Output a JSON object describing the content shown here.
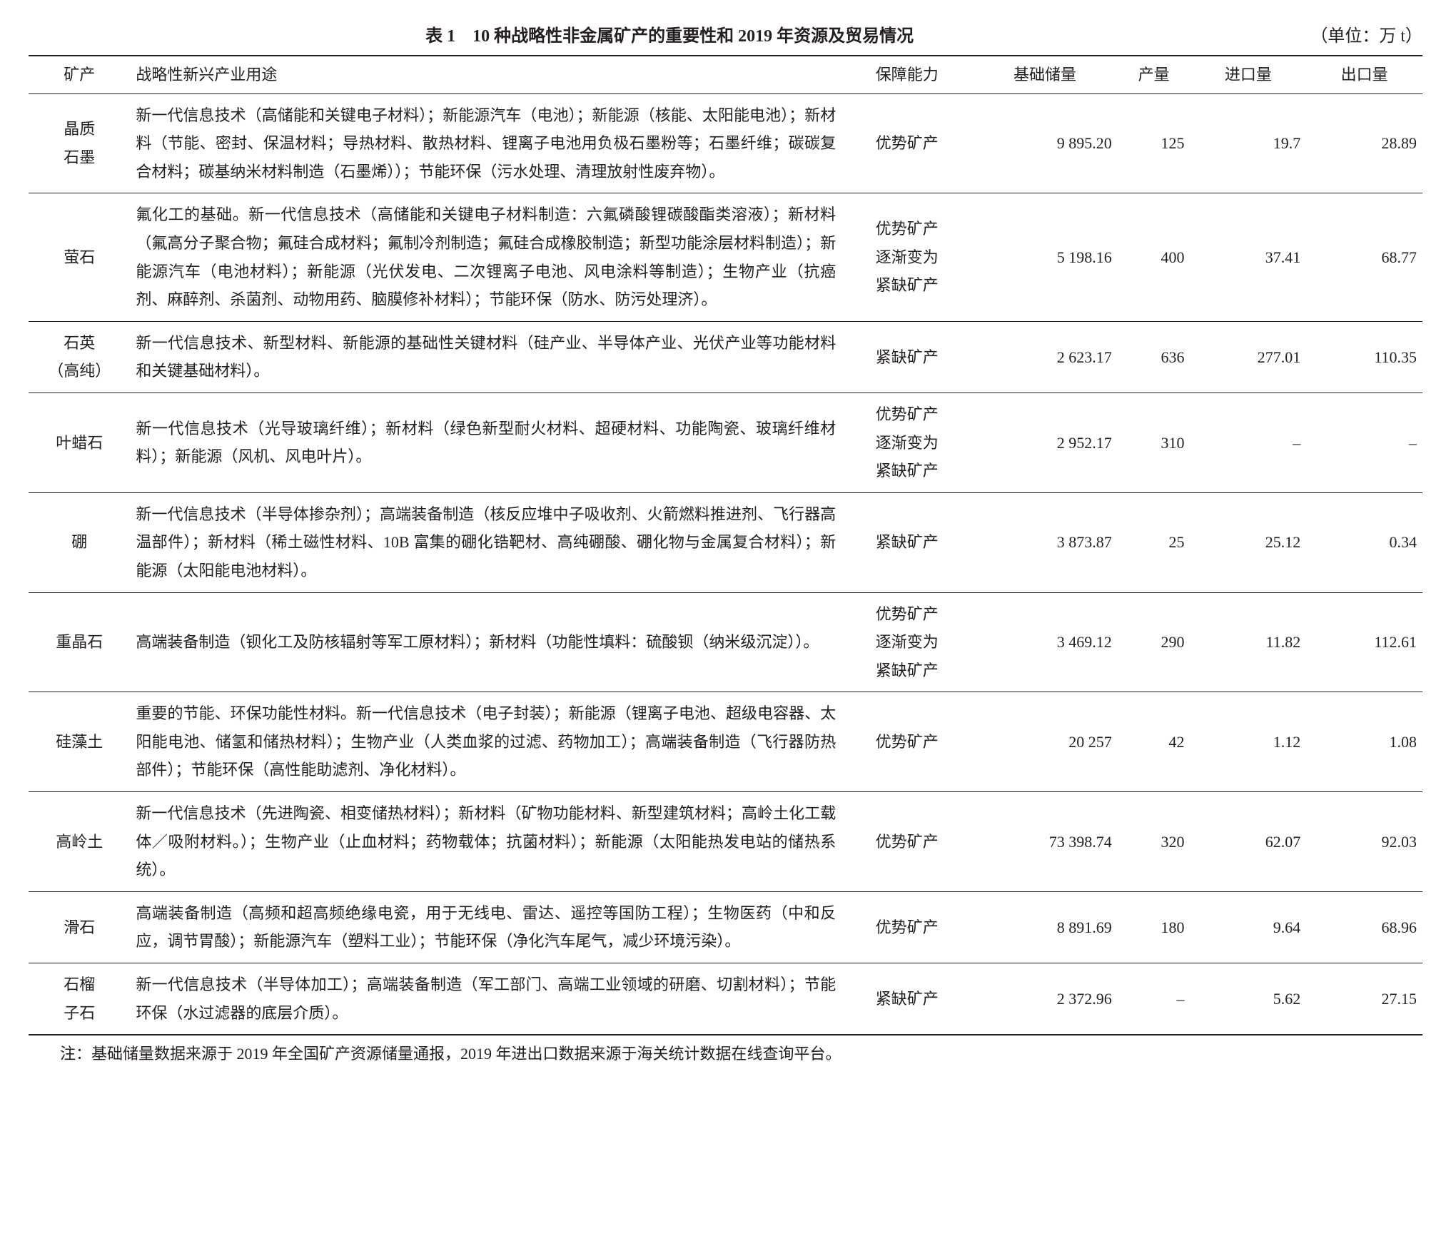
{
  "caption": {
    "title": "表 1　10 种战略性非金属矿产的重要性和 2019 年资源及贸易情况",
    "unit": "（单位：万 t）"
  },
  "headers": {
    "mineral": "矿产",
    "usage": "战略性新兴产业用途",
    "supply": "保障能力",
    "reserve": "基础储量",
    "output": "产量",
    "import": "进口量",
    "export": "出口量"
  },
  "rows": [
    {
      "mineral": "晶质\n石墨",
      "usage": "新一代信息技术（高储能和关键电子材料）；新能源汽车（电池）；新能源（核能、太阳能电池）；新材料（节能、密封、保温材料；导热材料、散热材料、锂离子电池用负极石墨粉等；石墨纤维；碳碳复合材料；碳基纳米材料制造（石墨烯））；节能环保（污水处理、清理放射性废弃物）。",
      "supply": "优势矿产",
      "reserve": "9 895.20",
      "output": "125",
      "import": "19.7",
      "export": "28.89"
    },
    {
      "mineral": "萤石",
      "usage": "氟化工的基础。新一代信息技术（高储能和关键电子材料制造：六氟磷酸锂碳酸酯类溶液）；新材料（氟高分子聚合物；氟硅合成材料；氟制冷剂制造；氟硅合成橡胶制造；新型功能涂层材料制造）；新能源汽车（电池材料）；新能源（光伏发电、二次锂离子电池、风电涂料等制造）；生物产业（抗癌剂、麻醉剂、杀菌剂、动物用药、脑膜修补材料）；节能环保（防水、防污处理济）。",
      "supply": "优势矿产\n逐渐变为\n紧缺矿产",
      "reserve": "5 198.16",
      "output": "400",
      "import": "37.41",
      "export": "68.77"
    },
    {
      "mineral": "石英\n（高纯）",
      "usage": "新一代信息技术、新型材料、新能源的基础性关键材料（硅产业、半导体产业、光伏产业等功能材料和关键基础材料）。",
      "supply": "紧缺矿产",
      "reserve": "2 623.17",
      "output": "636",
      "import": "277.01",
      "export": "110.35"
    },
    {
      "mineral": "叶蜡石",
      "usage": "新一代信息技术（光导玻璃纤维）；新材料（绿色新型耐火材料、超硬材料、功能陶瓷、玻璃纤维材料）；新能源（风机、风电叶片）。",
      "supply": "优势矿产\n逐渐变为\n紧缺矿产",
      "reserve": "2 952.17",
      "output": "310",
      "import": "–",
      "export": "–"
    },
    {
      "mineral": "硼",
      "usage": "新一代信息技术（半导体掺杂剂）；高端装备制造（核反应堆中子吸收剂、火箭燃料推进剂、飞行器高温部件）；新材料（稀土磁性材料、10B 富集的硼化锆靶材、高纯硼酸、硼化物与金属复合材料）；新能源（太阳能电池材料）。",
      "supply": "紧缺矿产",
      "reserve": "3 873.87",
      "output": "25",
      "import": "25.12",
      "export": "0.34"
    },
    {
      "mineral": "重晶石",
      "usage": "高端装备制造（钡化工及防核辐射等军工原材料）；新材料（功能性填料：硫酸钡（纳米级沉淀））。",
      "supply": "优势矿产\n逐渐变为\n紧缺矿产",
      "reserve": "3 469.12",
      "output": "290",
      "import": "11.82",
      "export": "112.61"
    },
    {
      "mineral": "硅藻土",
      "usage": "重要的节能、环保功能性材料。新一代信息技术（电子封装）；新能源（锂离子电池、超级电容器、太阳能电池、储氢和储热材料）；生物产业（人类血浆的过滤、药物加工）；高端装备制造（飞行器防热部件）；节能环保（高性能助滤剂、净化材料）。",
      "supply": "优势矿产",
      "reserve": "20 257",
      "output": "42",
      "import": "1.12",
      "export": "1.08"
    },
    {
      "mineral": "高岭土",
      "usage": "新一代信息技术（先进陶瓷、相变储热材料）；新材料（矿物功能材料、新型建筑材料；高岭土化工载体／吸附材料。）；生物产业（止血材料；药物载体；抗菌材料）；新能源（太阳能热发电站的储热系统）。",
      "supply": "优势矿产",
      "reserve": "73 398.74",
      "output": "320",
      "import": "62.07",
      "export": "92.03"
    },
    {
      "mineral": "滑石",
      "usage": "高端装备制造（高频和超高频绝缘电瓷，用于无线电、雷达、遥控等国防工程）；生物医药（中和反应，调节胃酸）；新能源汽车（塑料工业）；节能环保（净化汽车尾气，减少环境污染）。",
      "supply": "优势矿产",
      "reserve": "8 891.69",
      "output": "180",
      "import": "9.64",
      "export": "68.96"
    },
    {
      "mineral": "石榴\n子石",
      "usage": "新一代信息技术（半导体加工）；高端装备制造（军工部门、高端工业领域的研磨、切割材料）；节能环保（水过滤器的底层介质）。",
      "supply": "紧缺矿产",
      "reserve": "2 372.96",
      "output": "–",
      "import": "5.62",
      "export": "27.15"
    }
  ],
  "note": "注：基础储量数据来源于 2019 年全国矿产资源储量通报，2019 年进出口数据来源于海关统计数据在线查询平台。"
}
